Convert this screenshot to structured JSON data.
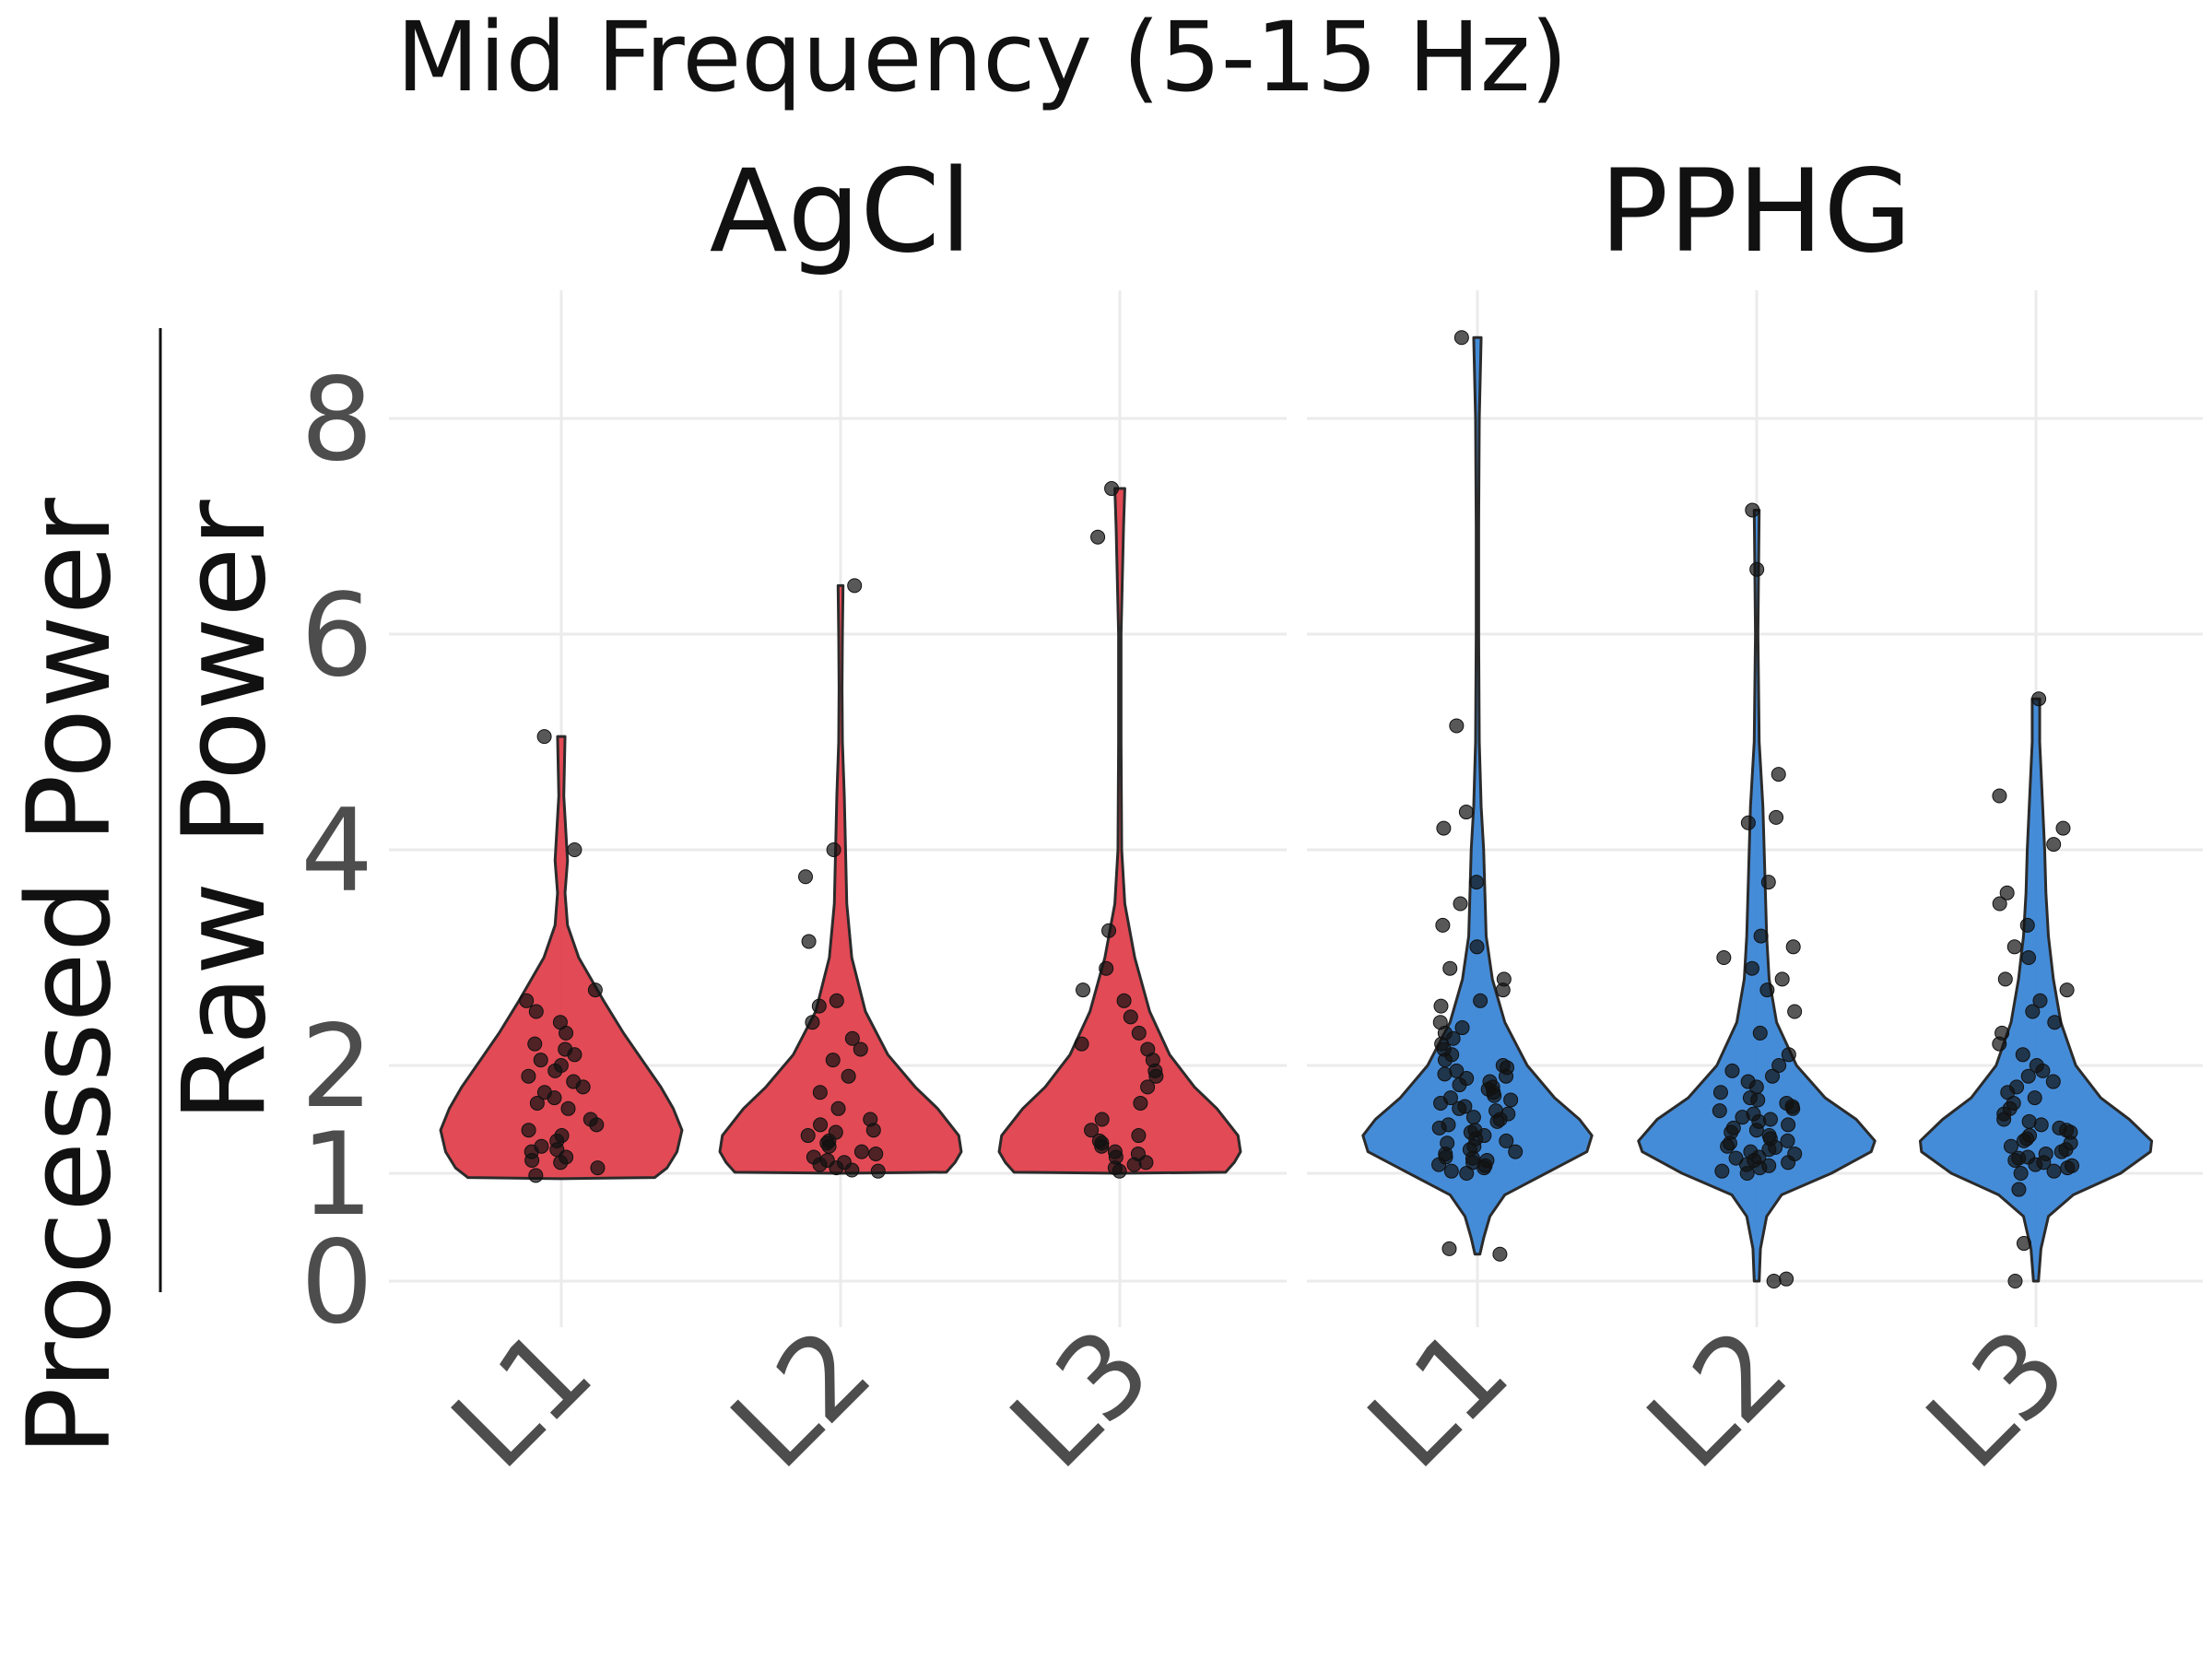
{
  "chart_data": {
    "type": "violin",
    "title": "Mid Frequency (5-15 Hz)",
    "ylabel_numerator": "Processed Power",
    "ylabel_denominator": "Raw Power",
    "xlabel": "",
    "y_ticks": [
      0,
      1,
      2,
      4,
      6,
      8
    ],
    "ylim": [
      -0.6,
      9.4
    ],
    "grid": true,
    "legend": "none",
    "categories": [
      "L1",
      "L2",
      "L3"
    ],
    "panels": [
      {
        "name": "AgCl",
        "color": "#e0404c",
        "groups": [
          {
            "category": "L1",
            "violin": {
              "range": [
                0.95,
                5.05
              ],
              "profile": [
                [
                  0.95,
                  0.0
                ],
                [
                  0.96,
                  0.75
                ],
                [
                  1.05,
                  0.85
                ],
                [
                  1.2,
                  0.93
                ],
                [
                  1.4,
                  0.97
                ],
                [
                  1.6,
                  0.9
                ],
                [
                  1.8,
                  0.8
                ],
                [
                  2.0,
                  0.68
                ],
                [
                  2.3,
                  0.5
                ],
                [
                  2.6,
                  0.34
                ],
                [
                  3.0,
                  0.14
                ],
                [
                  3.3,
                  0.05
                ],
                [
                  3.6,
                  0.03
                ],
                [
                  3.9,
                  0.05
                ],
                [
                  4.1,
                  0.04
                ],
                [
                  4.5,
                  0.02
                ],
                [
                  5.05,
                  0.03
                ]
              ]
            },
            "points": [
              1.1,
              1.15,
              1.2,
              1.25,
              1.3,
              1.35,
              1.4,
              1.5,
              1.6,
              1.7,
              1.75,
              1.8,
              1.85,
              1.9,
              2.0,
              2.05,
              2.1,
              2.2,
              2.3,
              2.4,
              2.5,
              2.6,
              2.7,
              1.05,
              1.12,
              1.22,
              1.45,
              1.65,
              1.95,
              2.15,
              4.0,
              5.05,
              0.98
            ]
          },
          {
            "category": "L2",
            "violin": {
              "range": [
                1.0,
                6.45
              ],
              "profile": [
                [
                  1.0,
                  0.0
                ],
                [
                  1.01,
                  0.85
                ],
                [
                  1.1,
                  0.92
                ],
                [
                  1.2,
                  0.97
                ],
                [
                  1.35,
                  0.95
                ],
                [
                  1.6,
                  0.78
                ],
                [
                  1.8,
                  0.6
                ],
                [
                  2.1,
                  0.38
                ],
                [
                  2.5,
                  0.2
                ],
                [
                  3.0,
                  0.09
                ],
                [
                  3.5,
                  0.05
                ],
                [
                  4.0,
                  0.04
                ],
                [
                  4.5,
                  0.03
                ],
                [
                  5.0,
                  0.015
                ],
                [
                  5.5,
                  0.012
                ],
                [
                  6.0,
                  0.015
                ],
                [
                  6.45,
                  0.02
                ]
              ]
            },
            "points": [
              1.02,
              1.05,
              1.08,
              1.1,
              1.12,
              1.15,
              1.2,
              1.25,
              1.3,
              1.35,
              1.4,
              1.45,
              1.5,
              1.6,
              1.75,
              1.9,
              2.05,
              2.15,
              2.25,
              2.4,
              2.55,
              2.6,
              3.15,
              3.75,
              4.0,
              6.45,
              1.03,
              1.18,
              1.28,
              1.38
            ]
          },
          {
            "category": "L3",
            "violin": {
              "range": [
                1.0,
                7.35
              ],
              "profile": [
                [
                  1.0,
                  0.0
                ],
                [
                  1.01,
                  0.85
                ],
                [
                  1.1,
                  0.92
                ],
                [
                  1.2,
                  0.97
                ],
                [
                  1.35,
                  0.95
                ],
                [
                  1.6,
                  0.78
                ],
                [
                  1.8,
                  0.6
                ],
                [
                  2.1,
                  0.4
                ],
                [
                  2.5,
                  0.24
                ],
                [
                  3.0,
                  0.12
                ],
                [
                  3.5,
                  0.04
                ],
                [
                  4.0,
                  0.015
                ],
                [
                  5.0,
                  0.01
                ],
                [
                  6.0,
                  0.01
                ],
                [
                  6.5,
                  0.02
                ],
                [
                  7.0,
                  0.03
                ],
                [
                  7.35,
                  0.04
                ]
              ]
            },
            "points": [
              1.02,
              1.05,
              1.1,
              1.15,
              1.2,
              1.25,
              1.3,
              1.35,
              1.4,
              1.5,
              1.65,
              1.8,
              1.9,
              2.05,
              2.15,
              2.3,
              2.45,
              2.6,
              2.7,
              2.9,
              3.25,
              6.9,
              7.35,
              1.08,
              1.18,
              1.28,
              1.95,
              2.2
            ]
          }
        ]
      },
      {
        "name": "PPHG",
        "color": "#3b86d6",
        "groups": [
          {
            "category": "L1",
            "violin": {
              "range": [
                0.25,
                8.75
              ],
              "profile": [
                [
                  0.25,
                  0.02
                ],
                [
                  0.4,
                  0.05
                ],
                [
                  0.6,
                  0.1
                ],
                [
                  0.8,
                  0.22
                ],
                [
                  1.0,
                  0.55
                ],
                [
                  1.2,
                  0.88
                ],
                [
                  1.35,
                  0.92
                ],
                [
                  1.5,
                  0.82
                ],
                [
                  1.7,
                  0.62
                ],
                [
                  2.0,
                  0.4
                ],
                [
                  2.4,
                  0.22
                ],
                [
                  2.8,
                  0.12
                ],
                [
                  3.2,
                  0.07
                ],
                [
                  3.6,
                  0.06
                ],
                [
                  4.0,
                  0.05
                ],
                [
                  4.4,
                  0.03
                ],
                [
                  5.0,
                  0.015
                ],
                [
                  6.0,
                  0.01
                ],
                [
                  7.0,
                  0.01
                ],
                [
                  8.0,
                  0.015
                ],
                [
                  8.75,
                  0.03
                ]
              ]
            },
            "points": [
              1.0,
              1.05,
              1.1,
              1.15,
              1.2,
              1.25,
              1.3,
              1.35,
              1.4,
              1.45,
              1.5,
              1.55,
              1.6,
              1.65,
              1.7,
              1.75,
              1.8,
              1.85,
              1.9,
              1.95,
              2.0,
              2.1,
              2.2,
              2.3,
              2.4,
              2.6,
              2.7,
              2.8,
              2.9,
              3.1,
              3.3,
              3.5,
              3.7,
              4.2,
              4.35,
              5.15,
              8.75,
              0.25,
              0.3,
              1.02,
              1.08,
              1.12,
              1.18,
              1.22,
              1.28,
              1.32,
              1.38,
              1.42,
              1.48,
              1.52,
              1.58,
              1.62,
              1.68,
              1.72,
              1.78,
              1.82,
              1.88,
              1.92,
              1.98,
              2.05,
              2.15,
              2.25,
              2.35,
              2.55,
              1.07,
              1.14
            ]
          },
          {
            "category": "L2",
            "violin": {
              "range": [
                0.0,
                7.15
              ],
              "profile": [
                [
                  0.0,
                  0.02
                ],
                [
                  0.3,
                  0.03
                ],
                [
                  0.6,
                  0.08
                ],
                [
                  0.8,
                  0.2
                ],
                [
                  1.0,
                  0.6
                ],
                [
                  1.2,
                  0.92
                ],
                [
                  1.3,
                  0.95
                ],
                [
                  1.5,
                  0.8
                ],
                [
                  1.7,
                  0.55
                ],
                [
                  2.0,
                  0.32
                ],
                [
                  2.4,
                  0.16
                ],
                [
                  2.8,
                  0.1
                ],
                [
                  3.2,
                  0.08
                ],
                [
                  3.6,
                  0.07
                ],
                [
                  4.0,
                  0.06
                ],
                [
                  4.4,
                  0.05
                ],
                [
                  5.0,
                  0.02
                ],
                [
                  6.0,
                  0.01
                ],
                [
                  6.6,
                  0.015
                ],
                [
                  7.15,
                  0.02
                ]
              ]
            },
            "points": [
              1.0,
              1.05,
              1.1,
              1.15,
              1.2,
              1.25,
              1.3,
              1.35,
              1.4,
              1.45,
              1.5,
              1.55,
              1.6,
              1.65,
              1.7,
              1.8,
              1.9,
              2.0,
              2.1,
              2.3,
              2.5,
              2.7,
              2.8,
              2.9,
              3.0,
              3.1,
              3.2,
              3.7,
              4.25,
              4.3,
              4.7,
              6.6,
              7.15,
              0.02,
              0.0,
              1.02,
              1.08,
              1.12,
              1.18,
              1.22,
              1.28,
              1.32,
              1.38,
              1.42,
              1.48,
              1.52,
              1.58,
              1.62,
              1.68,
              1.75,
              1.85,
              1.95,
              1.07,
              1.14,
              1.24
            ]
          },
          {
            "category": "L3",
            "violin": {
              "range": [
                0.0,
                5.4
              ],
              "profile": [
                [
                  0.0,
                  0.02
                ],
                [
                  0.3,
                  0.04
                ],
                [
                  0.6,
                  0.1
                ],
                [
                  0.8,
                  0.3
                ],
                [
                  1.0,
                  0.68
                ],
                [
                  1.2,
                  0.92
                ],
                [
                  1.3,
                  0.93
                ],
                [
                  1.5,
                  0.75
                ],
                [
                  1.7,
                  0.52
                ],
                [
                  2.0,
                  0.32
                ],
                [
                  2.4,
                  0.2
                ],
                [
                  2.8,
                  0.14
                ],
                [
                  3.2,
                  0.1
                ],
                [
                  3.6,
                  0.08
                ],
                [
                  4.0,
                  0.07
                ],
                [
                  4.5,
                  0.05
                ],
                [
                  5.0,
                  0.03
                ],
                [
                  5.4,
                  0.03
                ]
              ]
            },
            "points": [
              1.0,
              1.05,
              1.1,
              1.15,
              1.2,
              1.25,
              1.3,
              1.35,
              1.4,
              1.45,
              1.5,
              1.6,
              1.7,
              1.8,
              1.9,
              2.0,
              2.1,
              2.2,
              2.3,
              2.4,
              2.5,
              2.6,
              2.7,
              2.8,
              3.0,
              3.1,
              3.3,
              3.5,
              3.6,
              4.05,
              4.2,
              4.5,
              5.4,
              0.85,
              0.35,
              0.0,
              1.02,
              1.08,
              1.12,
              1.18,
              1.22,
              1.28,
              1.32,
              1.38,
              1.42,
              1.48,
              1.55,
              1.65,
              1.75,
              1.85,
              1.95,
              1.07,
              1.14
            ]
          }
        ]
      }
    ]
  }
}
